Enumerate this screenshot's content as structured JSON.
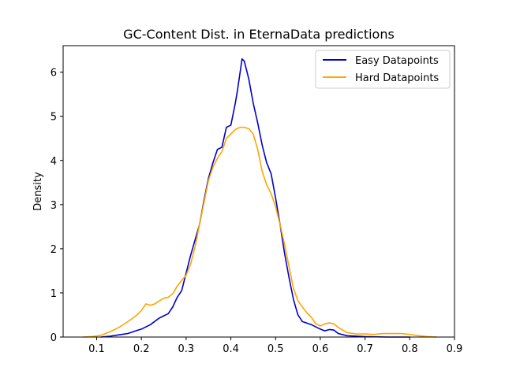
{
  "chart_data": {
    "type": "line",
    "title": "GC-Content Dist. in EternaData predictions",
    "xlabel": "",
    "ylabel": "Density",
    "xlim": [
      0.025,
      0.9
    ],
    "ylim": [
      0,
      6.6
    ],
    "xticks": [
      0.1,
      0.2,
      0.3,
      0.4,
      0.5,
      0.6,
      0.7,
      0.8,
      0.9
    ],
    "xtick_labels": [
      "0.1",
      "0.2",
      "0.3",
      "0.4",
      "0.5",
      "0.6",
      "0.7",
      "0.8",
      "0.9"
    ],
    "yticks": [
      0,
      1,
      2,
      3,
      4,
      5,
      6
    ],
    "ytick_labels": [
      "0",
      "1",
      "2",
      "3",
      "4",
      "5",
      "6"
    ],
    "grid": false,
    "legend_position": "top-right",
    "series": [
      {
        "name": "Easy Datapoints",
        "color": "#0000cc",
        "x": [
          0.11,
          0.13,
          0.15,
          0.17,
          0.19,
          0.2,
          0.22,
          0.24,
          0.26,
          0.27,
          0.28,
          0.29,
          0.3,
          0.31,
          0.32,
          0.33,
          0.34,
          0.35,
          0.36,
          0.37,
          0.38,
          0.39,
          0.4,
          0.41,
          0.415,
          0.42,
          0.425,
          0.43,
          0.435,
          0.44,
          0.45,
          0.46,
          0.47,
          0.48,
          0.49,
          0.5,
          0.51,
          0.52,
          0.53,
          0.54,
          0.55,
          0.56,
          0.58,
          0.6,
          0.61,
          0.62,
          0.63,
          0.64,
          0.66,
          0.7,
          0.75,
          0.8
        ],
        "y": [
          0,
          0.02,
          0.05,
          0.08,
          0.15,
          0.18,
          0.28,
          0.43,
          0.53,
          0.68,
          0.9,
          1.05,
          1.45,
          1.85,
          2.2,
          2.55,
          3.1,
          3.6,
          3.95,
          4.25,
          4.3,
          4.75,
          4.8,
          5.3,
          5.6,
          5.95,
          6.3,
          6.25,
          6.05,
          5.85,
          5.3,
          4.85,
          4.35,
          3.95,
          3.7,
          3.15,
          2.55,
          1.9,
          1.35,
          0.85,
          0.5,
          0.35,
          0.28,
          0.18,
          0.14,
          0.17,
          0.16,
          0.08,
          0.03,
          0.01,
          0,
          0
        ]
      },
      {
        "name": "Hard Datapoints",
        "color": "#ffa500",
        "x": [
          0.07,
          0.09,
          0.11,
          0.13,
          0.15,
          0.17,
          0.19,
          0.2,
          0.21,
          0.22,
          0.23,
          0.24,
          0.25,
          0.26,
          0.27,
          0.28,
          0.29,
          0.3,
          0.31,
          0.32,
          0.33,
          0.34,
          0.35,
          0.36,
          0.37,
          0.38,
          0.39,
          0.4,
          0.41,
          0.42,
          0.43,
          0.44,
          0.45,
          0.46,
          0.47,
          0.48,
          0.49,
          0.5,
          0.51,
          0.52,
          0.53,
          0.54,
          0.55,
          0.56,
          0.57,
          0.58,
          0.59,
          0.6,
          0.61,
          0.62,
          0.63,
          0.64,
          0.66,
          0.68,
          0.7,
          0.72,
          0.74,
          0.76,
          0.78,
          0.8,
          0.82,
          0.84,
          0.86
        ],
        "y": [
          0,
          0.01,
          0.04,
          0.12,
          0.22,
          0.35,
          0.5,
          0.6,
          0.75,
          0.72,
          0.75,
          0.82,
          0.88,
          0.9,
          0.98,
          1.15,
          1.28,
          1.4,
          1.65,
          2.05,
          2.55,
          3.05,
          3.55,
          3.85,
          4.05,
          4.2,
          4.5,
          4.6,
          4.7,
          4.75,
          4.75,
          4.72,
          4.6,
          4.25,
          3.75,
          3.45,
          3.25,
          2.95,
          2.55,
          2.1,
          1.6,
          1.1,
          0.82,
          0.68,
          0.55,
          0.45,
          0.3,
          0.25,
          0.3,
          0.32,
          0.3,
          0.22,
          0.1,
          0.07,
          0.07,
          0.06,
          0.08,
          0.08,
          0.08,
          0.06,
          0.03,
          0.01,
          0
        ]
      }
    ]
  }
}
